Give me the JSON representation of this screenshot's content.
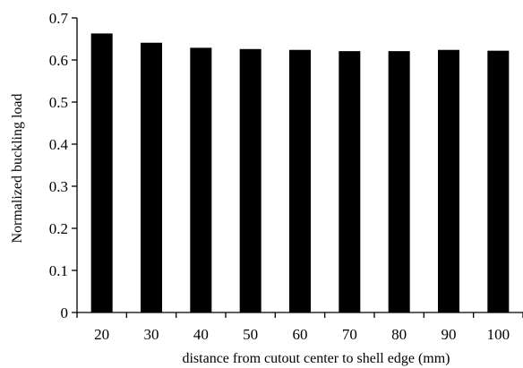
{
  "colors": {
    "bar": "#000000",
    "axis": "#000000",
    "background": "#ffffff"
  },
  "chart_data": {
    "type": "bar",
    "title": "",
    "xlabel": "distance from cutout center to shell edge (mm)",
    "ylabel": "Normalized buckling load",
    "categories": [
      "20",
      "30",
      "40",
      "50",
      "60",
      "70",
      "80",
      "90",
      "100"
    ],
    "values": [
      0.663,
      0.641,
      0.629,
      0.626,
      0.624,
      0.621,
      0.621,
      0.624,
      0.622
    ],
    "ylim": [
      0,
      0.7
    ],
    "yticks": [
      "0",
      "0.1",
      "0.2",
      "0.3",
      "0.4",
      "0.5",
      "0.6",
      "0.7"
    ],
    "grid": false,
    "legend": "none"
  }
}
